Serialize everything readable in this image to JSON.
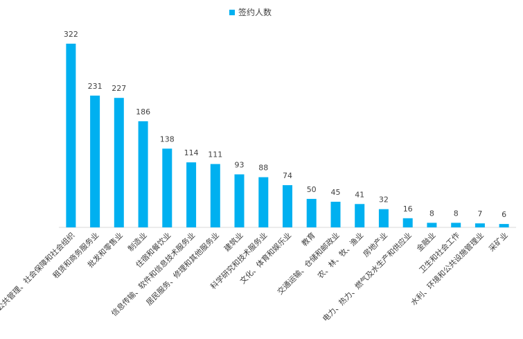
{
  "chart_data": {
    "type": "bar",
    "title": "",
    "xlabel": "",
    "ylabel": "",
    "categories": [
      "公共管理、社会保障和社会组织",
      "租赁和商务服务业",
      "批发和零售业",
      "制造业",
      "住宿和餐饮业",
      "信息传输、软件和信息技术服务业",
      "居民服务、修理和其他服务业",
      "建筑业",
      "科学研究和技术服务业",
      "文化、体育和娱乐业",
      "教育",
      "交通运输、仓储和邮政业",
      "农、林、牧、渔业",
      "房地产业",
      "电力、热力、燃气及水生产和供应业",
      "金融业",
      "卫生和社会工作",
      "水利、环境和公共设施管理业",
      "采矿业"
    ],
    "series": [
      {
        "name": "签约人数",
        "values": [
          322,
          231,
          227,
          186,
          138,
          114,
          111,
          93,
          88,
          74,
          50,
          45,
          41,
          32,
          16,
          8,
          8,
          7,
          6
        ],
        "value_labels": [
          "322",
          "231",
          "227",
          "186",
          "138",
          "114",
          "111",
          "93",
          "88",
          "74",
          "50",
          "45",
          "41",
          "32",
          "16",
          "8",
          "8",
          "7",
          "6"
        ]
      }
    ],
    "ylim": [
      0,
      322
    ],
    "grid": false,
    "legend_position": "top-center",
    "bar_color": "#00B0F0"
  }
}
